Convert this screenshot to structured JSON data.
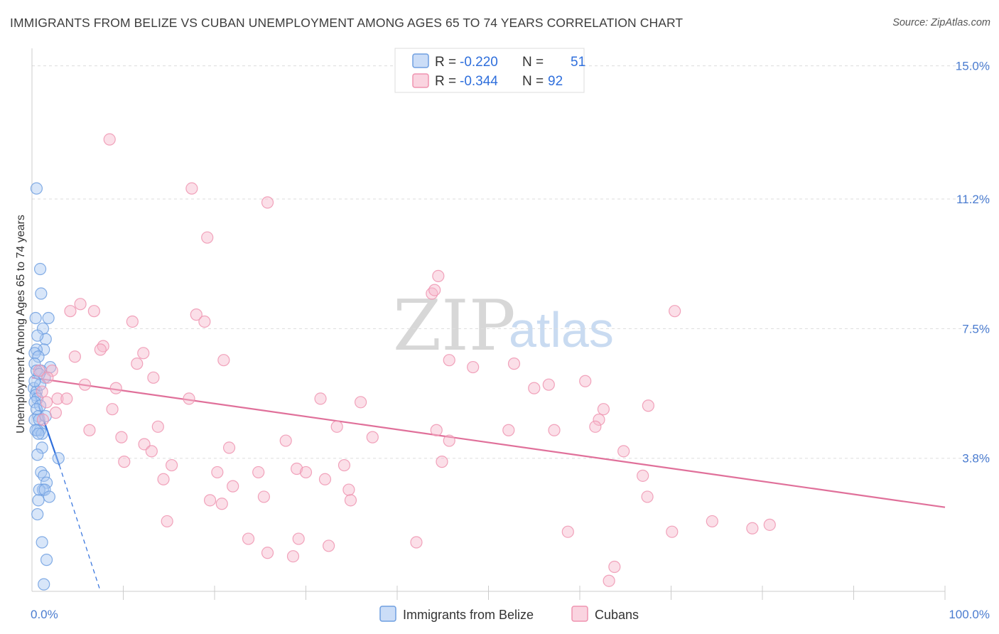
{
  "title": "IMMIGRANTS FROM BELIZE VS CUBAN UNEMPLOYMENT AMONG AGES 65 TO 74 YEARS CORRELATION CHART",
  "source": "Source: ZipAtlas.com",
  "watermark": {
    "zip": "ZIP",
    "atlas": "atlas"
  },
  "legend_top": [
    {
      "r_label": "R =",
      "r_value": "-0.220",
      "n_label": "N =",
      "n_value": "51",
      "color": "#a9c7f2"
    },
    {
      "r_label": "R =",
      "r_value": "-0.344",
      "n_label": "N =",
      "n_value": "92",
      "color": "#f7b8cb"
    }
  ],
  "legend_bottom": [
    {
      "label": "Immigrants from Belize",
      "color": "#a9c7f2"
    },
    {
      "label": "Cubans",
      "color": "#f7b8cb"
    }
  ],
  "chart_data": {
    "type": "scatter",
    "title": "IMMIGRANTS FROM BELIZE VS CUBAN UNEMPLOYMENT AMONG AGES 65 TO 74 YEARS CORRELATION CHART",
    "xlabel": "",
    "ylabel": "Unemployment Among Ages 65 to 74 years",
    "xlim": [
      0,
      100
    ],
    "ylim": [
      0,
      15.5
    ],
    "x_tick_labels": [
      "0.0%",
      "100.0%"
    ],
    "y_ticks": [
      {
        "value": 3.8,
        "label": "3.8%"
      },
      {
        "value": 7.5,
        "label": "7.5%"
      },
      {
        "value": 11.2,
        "label": "11.2%"
      },
      {
        "value": 15.0,
        "label": "15.0%"
      }
    ],
    "series": [
      {
        "name": "Immigrants from Belize",
        "color": "#a9c7f2",
        "edge": "#6f9fe0",
        "trend": {
          "x": [
            0.2,
            3.0
          ],
          "y": [
            5.7,
            3.6
          ],
          "color": "#2f6fdc",
          "extrapolated_to": [
            7.5,
            0.0
          ]
        },
        "points": [
          [
            0.5,
            11.5
          ],
          [
            0.9,
            9.2
          ],
          [
            1.0,
            8.5
          ],
          [
            0.4,
            7.8
          ],
          [
            1.8,
            7.8
          ],
          [
            1.2,
            7.5
          ],
          [
            1.5,
            7.2
          ],
          [
            0.6,
            7.3
          ],
          [
            1.3,
            6.9
          ],
          [
            0.5,
            6.9
          ],
          [
            0.3,
            6.8
          ],
          [
            0.7,
            6.7
          ],
          [
            2.0,
            6.4
          ],
          [
            0.3,
            6.5
          ],
          [
            1.0,
            6.3
          ],
          [
            0.5,
            6.3
          ],
          [
            1.4,
            6.1
          ],
          [
            0.8,
            6.2
          ],
          [
            0.2,
            5.8
          ],
          [
            0.5,
            5.7
          ],
          [
            0.4,
            5.6
          ],
          [
            0.6,
            5.5
          ],
          [
            0.3,
            5.4
          ],
          [
            0.9,
            5.3
          ],
          [
            0.5,
            5.2
          ],
          [
            0.7,
            5.0
          ],
          [
            0.3,
            4.9
          ],
          [
            0.8,
            4.9
          ],
          [
            0.9,
            4.6
          ],
          [
            0.6,
            4.6
          ],
          [
            0.4,
            4.6
          ],
          [
            1.1,
            4.5
          ],
          [
            0.7,
            4.5
          ],
          [
            1.1,
            4.1
          ],
          [
            0.6,
            3.9
          ],
          [
            2.9,
            3.8
          ],
          [
            1.0,
            3.4
          ],
          [
            1.3,
            3.3
          ],
          [
            1.6,
            3.1
          ],
          [
            1.2,
            2.9
          ],
          [
            0.8,
            2.9
          ],
          [
            1.4,
            2.9
          ],
          [
            1.9,
            2.7
          ],
          [
            0.7,
            2.6
          ],
          [
            1.1,
            1.4
          ],
          [
            1.6,
            0.9
          ],
          [
            1.3,
            0.2
          ],
          [
            0.9,
            5.9
          ],
          [
            0.3,
            6.0
          ],
          [
            0.6,
            2.2
          ],
          [
            1.5,
            5.0
          ]
        ]
      },
      {
        "name": "Cubans",
        "color": "#f7b8cb",
        "edge": "#ef94b0",
        "trend": {
          "x": [
            0,
            100
          ],
          "y": [
            6.1,
            2.4
          ],
          "color": "#e0709a"
        },
        "points": [
          [
            8.5,
            12.9
          ],
          [
            17.5,
            11.5
          ],
          [
            25.8,
            11.1
          ],
          [
            19.2,
            10.1
          ],
          [
            44.5,
            9.0
          ],
          [
            43.8,
            8.5
          ],
          [
            44.1,
            8.6
          ],
          [
            5.3,
            8.2
          ],
          [
            4.2,
            8.0
          ],
          [
            6.8,
            8.0
          ],
          [
            18.0,
            7.9
          ],
          [
            70.4,
            8.0
          ],
          [
            11.0,
            7.7
          ],
          [
            18.9,
            7.7
          ],
          [
            7.8,
            7.0
          ],
          [
            7.5,
            6.9
          ],
          [
            12.2,
            6.8
          ],
          [
            4.7,
            6.7
          ],
          [
            11.5,
            6.5
          ],
          [
            21.0,
            6.6
          ],
          [
            45.7,
            6.6
          ],
          [
            48.3,
            6.4
          ],
          [
            52.8,
            6.5
          ],
          [
            0.8,
            6.3
          ],
          [
            2.2,
            6.3
          ],
          [
            13.3,
            6.1
          ],
          [
            1.7,
            6.1
          ],
          [
            5.8,
            5.9
          ],
          [
            56.6,
            5.9
          ],
          [
            60.6,
            6.0
          ],
          [
            55.0,
            5.8
          ],
          [
            9.2,
            5.8
          ],
          [
            1.1,
            5.7
          ],
          [
            17.2,
            5.5
          ],
          [
            31.6,
            5.5
          ],
          [
            2.8,
            5.5
          ],
          [
            3.8,
            5.5
          ],
          [
            1.6,
            5.4
          ],
          [
            36.0,
            5.4
          ],
          [
            67.5,
            5.3
          ],
          [
            8.8,
            5.2
          ],
          [
            62.6,
            5.2
          ],
          [
            2.6,
            5.1
          ],
          [
            1.2,
            4.9
          ],
          [
            62.1,
            4.9
          ],
          [
            6.3,
            4.6
          ],
          [
            13.8,
            4.7
          ],
          [
            33.4,
            4.7
          ],
          [
            44.3,
            4.6
          ],
          [
            52.2,
            4.6
          ],
          [
            57.2,
            4.6
          ],
          [
            61.7,
            4.7
          ],
          [
            9.8,
            4.4
          ],
          [
            27.8,
            4.3
          ],
          [
            37.3,
            4.4
          ],
          [
            45.7,
            4.3
          ],
          [
            12.3,
            4.2
          ],
          [
            21.6,
            4.1
          ],
          [
            13.1,
            4.0
          ],
          [
            64.8,
            4.0
          ],
          [
            10.1,
            3.7
          ],
          [
            44.9,
            3.7
          ],
          [
            15.3,
            3.6
          ],
          [
            34.2,
            3.6
          ],
          [
            20.3,
            3.4
          ],
          [
            24.8,
            3.4
          ],
          [
            29.0,
            3.5
          ],
          [
            30.0,
            3.4
          ],
          [
            66.9,
            3.3
          ],
          [
            14.4,
            3.2
          ],
          [
            32.1,
            3.2
          ],
          [
            22.0,
            3.0
          ],
          [
            34.7,
            2.9
          ],
          [
            25.4,
            2.7
          ],
          [
            19.5,
            2.6
          ],
          [
            20.8,
            2.5
          ],
          [
            34.9,
            2.6
          ],
          [
            67.4,
            2.7
          ],
          [
            14.8,
            2.0
          ],
          [
            58.7,
            1.7
          ],
          [
            70.1,
            1.7
          ],
          [
            74.5,
            2.0
          ],
          [
            78.9,
            1.8
          ],
          [
            80.8,
            1.9
          ],
          [
            23.7,
            1.5
          ],
          [
            29.2,
            1.5
          ],
          [
            42.1,
            1.4
          ],
          [
            32.5,
            1.3
          ],
          [
            25.8,
            1.1
          ],
          [
            28.6,
            1.0
          ],
          [
            63.8,
            0.7
          ],
          [
            63.2,
            0.3
          ]
        ]
      }
    ]
  }
}
